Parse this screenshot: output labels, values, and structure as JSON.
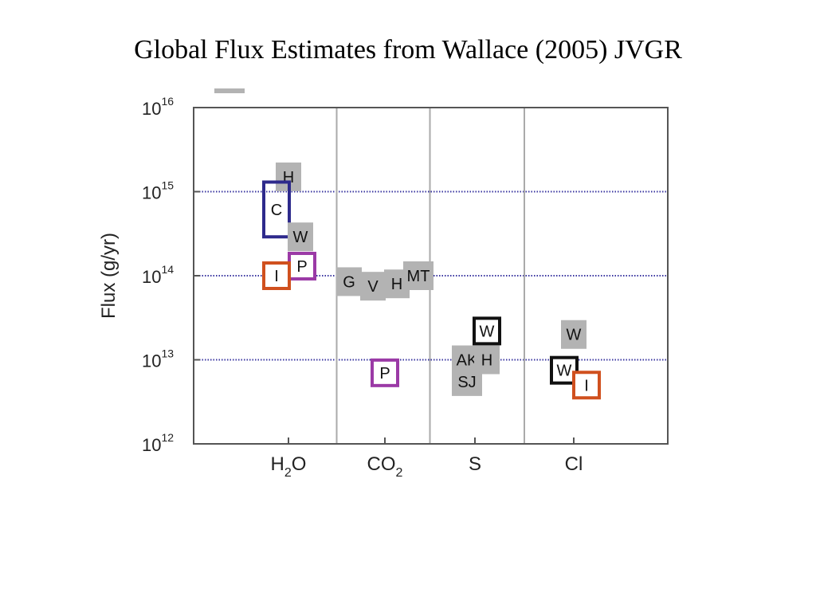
{
  "title": "Global Flux Estimates from Wallace (2005) JVGR",
  "chart_data": {
    "type": "scatter",
    "title": "Global Flux Estimates from Wallace (2005) JVGR",
    "ylabel": "Flux (g/yr)",
    "yscale": "log",
    "ylim": [
      1000000000000.0,
      1e+16
    ],
    "grid": "dotted lines at 10^13, 10^14, 10^15",
    "y_ticks": [
      {
        "base": "10",
        "exp": "12",
        "value": 1000000000000.0
      },
      {
        "base": "10",
        "exp": "13",
        "value": 10000000000000.0
      },
      {
        "base": "10",
        "exp": "14",
        "value": 100000000000000.0
      },
      {
        "base": "10",
        "exp": "15",
        "value": 1000000000000000.0
      },
      {
        "base": "10",
        "exp": "16",
        "value": 1e+16
      }
    ],
    "categories": [
      {
        "main": "H",
        "sub": "2",
        "tail": "O"
      },
      {
        "main": "CO",
        "sub": "2",
        "tail": ""
      },
      {
        "main": "S",
        "sub": "",
        "tail": ""
      },
      {
        "main": "Cl",
        "sub": "",
        "tail": ""
      }
    ],
    "colors": {
      "gray_fill": "#b3b3b3",
      "navy": "#2e2a8c",
      "orange": "#d0501e",
      "purple": "#9b3aa6",
      "black": "#111111",
      "grid": "#3a36a0",
      "axis": "#555555"
    },
    "points": [
      {
        "label": "H",
        "category": 0,
        "offset": 0.0,
        "y": 1500000000000000.0,
        "style": "gray"
      },
      {
        "label": "C",
        "category": 0,
        "offset": -0.15,
        "y_min": 290000000000000.0,
        "y_max": 1300000000000000.0,
        "y": 620000000000000.0,
        "style": "navy-range"
      },
      {
        "label": "W",
        "category": 0,
        "offset": 0.15,
        "y": 290000000000000.0,
        "style": "gray"
      },
      {
        "label": "P",
        "category": 0,
        "offset": 0.17,
        "y": 130000000000000.0,
        "style": "purple"
      },
      {
        "label": "I",
        "category": 0,
        "offset": -0.15,
        "y": 100000000000000.0,
        "style": "orange"
      },
      {
        "label": "G",
        "category": 1,
        "offset": -0.45,
        "y": 85000000000000.0,
        "style": "gray"
      },
      {
        "label": "V",
        "category": 1,
        "offset": -0.15,
        "y": 75000000000000.0,
        "style": "gray"
      },
      {
        "label": "H",
        "category": 1,
        "offset": 0.15,
        "y": 80000000000000.0,
        "style": "gray"
      },
      {
        "label": "MT",
        "category": 1,
        "offset": 0.42,
        "y": 100000000000000.0,
        "style": "gray"
      },
      {
        "label": "P",
        "category": 1,
        "offset": 0.0,
        "y": 7000000000000.0,
        "style": "purple"
      },
      {
        "label": "W",
        "category": 2,
        "offset": 0.15,
        "y": 22000000000000.0,
        "style": "black"
      },
      {
        "label": "AK",
        "category": 2,
        "offset": -0.1,
        "y": 10000000000000.0,
        "style": "gray"
      },
      {
        "label": "H",
        "category": 2,
        "offset": 0.15,
        "y": 10000000000000.0,
        "style": "gray"
      },
      {
        "label": "SJ",
        "category": 2,
        "offset": -0.1,
        "y": 5500000000000.0,
        "style": "gray"
      },
      {
        "label": "W",
        "category": 3,
        "offset": 0.0,
        "y": 20000000000000.0,
        "style": "gray"
      },
      {
        "label": "W",
        "category": 3,
        "offset": -0.12,
        "y": 7500000000000.0,
        "style": "black"
      },
      {
        "label": "I",
        "category": 3,
        "offset": 0.16,
        "y": 5000000000000.0,
        "style": "orange"
      }
    ]
  }
}
